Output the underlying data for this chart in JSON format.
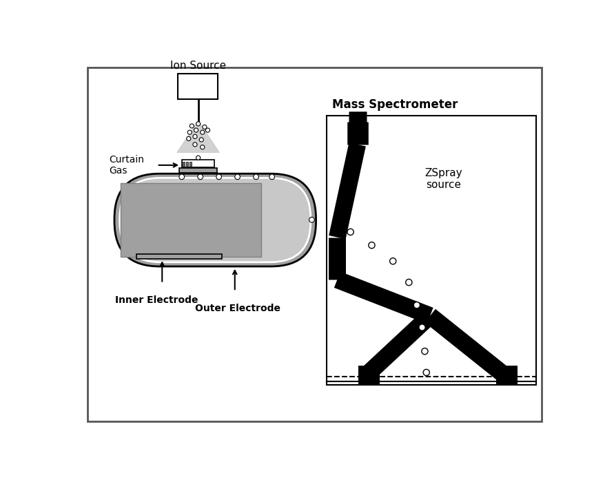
{
  "fig_bg": "#ffffff",
  "border_color": "#888888",
  "title_ion_source": "Ion Source",
  "title_mass_spec": "Mass Spectrometer",
  "label_curtain_gas": "Curtain\nGas",
  "label_inner_electrode": "Inner Electrode",
  "label_outer_electrode": "Outer Electrode",
  "label_zspray": "ZSpray\nsource",
  "gray_dark": "#808080",
  "gray_mid": "#a0a0a0",
  "gray_light": "#c8c8c8",
  "gray_lighter": "#d8d8d8",
  "spray_gray": "#c0c0c0"
}
